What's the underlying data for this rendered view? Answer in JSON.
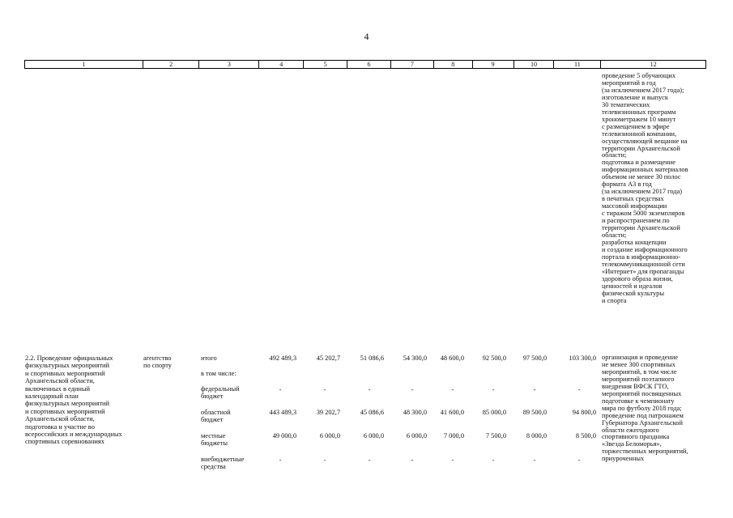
{
  "page_number": "4",
  "header_columns": [
    "1",
    "2",
    "3",
    "4",
    "5",
    "6",
    "7",
    "8",
    "9",
    "10",
    "11",
    "12"
  ],
  "top_continuation": "проведение 5 обучающих\nмероприятий в год\n(за исключением 2017 года);\nизготовление и выпуск\n30 тематических\nтелевизионных программ\nхронометражем 10 минут\nс размещением в эфире\nтелевизионной компании,\nосуществляющей вещание на\nтерритории Архангельской\nобласти;\nподготовка и размещение\nинформационных материалов\nобъемом не менее 30 полос\nформата А3 в год\n(за исключением 2017 года)\nв печатных средствах\nмассовой информации\nс тиражом 5000 экземпляров\nи распространением по\nтерритории Архангельской\nобласти;\nразработка концепции\nи создание информационного\nпортала в информационно-\nтелекоммуникационной сети\n«Интернет» для пропаганды\nздорового образа жизни,\nценностей и идеалов\nфизической культуры\nи спорта",
  "activity": {
    "name": "2.2. Проведение официальных\nфизкультурных мероприятий\nи спортивных мероприятий\nАрхангельской области,\nвключенных в единый\nкалендарный план\nфизкультурных мероприятий\nи спортивных мероприятий\nАрхангельской области,\nподготовка и участие во\nвсероссийских и международных\nспортивных соревнованиях",
    "executor": "агентство\nпо спорту",
    "sources": {
      "total": "итого",
      "including": "в том числе:",
      "federal": "федеральный\nбюджет",
      "regional": "областной\nбюджет",
      "local": "местные\nбюджеты",
      "extra": "внебюджетные\nсредства"
    },
    "total_values": [
      "492 489,3",
      "45 202,7",
      "51 086,6",
      "54 300,0",
      "48 600,0",
      "92 500,0",
      "97 500,0",
      "103 300,0"
    ],
    "federal_values": [
      "-",
      "-",
      "-",
      "-",
      "-",
      "-",
      "-",
      "-"
    ],
    "regional_values": [
      "443 489,3",
      "39 202,7",
      "45 086,6",
      "48 300,0",
      "41 600,0",
      "85 000,0",
      "89 500,0",
      "94 800,0"
    ],
    "local_values": [
      "49 000,0",
      "6 000,0",
      "6 000,0",
      "6 000,0",
      "7 000,0",
      "7 500,0",
      "8 000,0",
      "8 500,0"
    ],
    "extra_values": [
      "-",
      "-",
      "-",
      "-",
      "-",
      "-",
      "-",
      "-"
    ],
    "result": "организация и проведение\nне менее 300 спортивных\nмероприятий, в том числе\nмероприятий поэтапного\nвнедрения ВФСК ГТО,\nмероприятий посвященных\nподготовке к чемпионату\nмира по футболу 2018 года;\nпроведение под патронажем\nГубернатора Архангельской\nобласти ежегодного\nспортивного праздника\n«Звезда Беломорья»,\nторжественных мероприятий,\nприуроченных"
  }
}
